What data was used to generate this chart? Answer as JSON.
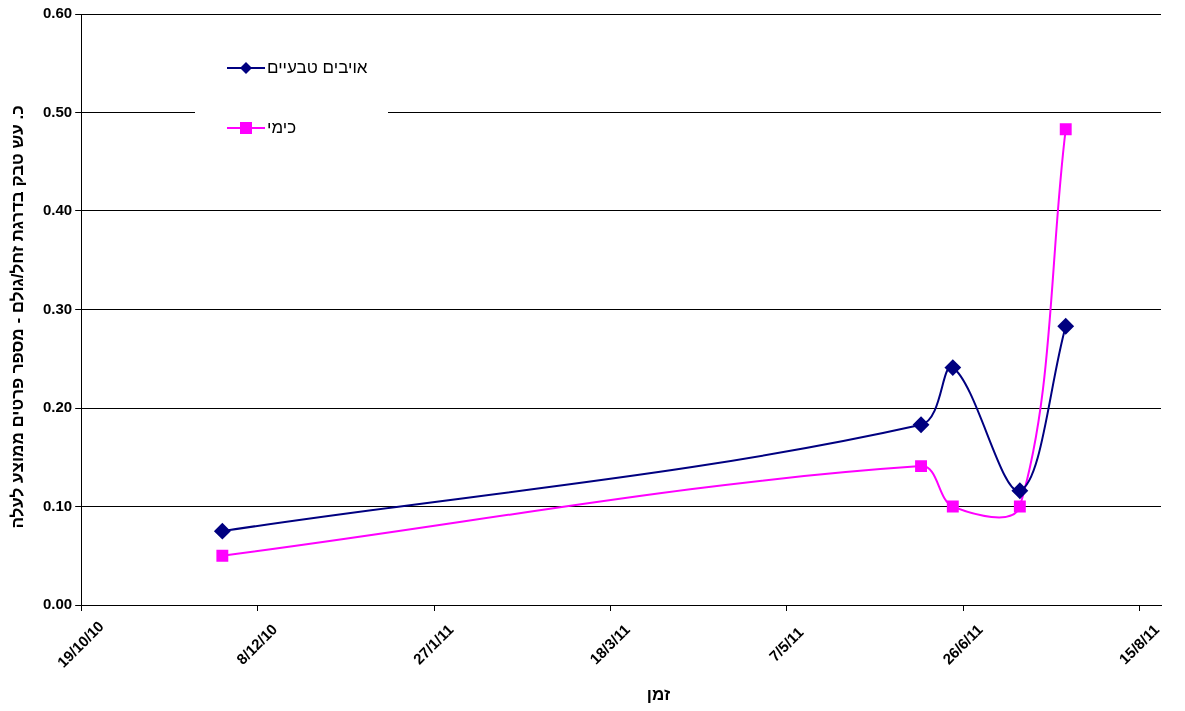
{
  "chart_data": {
    "type": "line",
    "xlabel": "זמן",
    "ylabel": "כ. עש טבק בדרגת זחל/גולם - מספר פרטים ממוצע לעלה",
    "x": [
      "2010-11-28",
      "2011-06-14",
      "2011-06-23",
      "2011-07-12",
      "2011-07-25"
    ],
    "series": [
      {
        "name": "אויבים טבעיים",
        "color": "#000080",
        "marker": "diamond",
        "values": [
          0.075,
          0.183,
          0.241,
          0.116,
          0.283
        ]
      },
      {
        "name": "כימי",
        "color": "#ff00ff",
        "marker": "square",
        "values": [
          0.05,
          0.141,
          0.1,
          0.1,
          0.483
        ]
      }
    ],
    "xlim": [
      "2010-10-19",
      "2011-08-21"
    ],
    "xticks": [
      {
        "value": "2010-10-19",
        "label": "19/10/10"
      },
      {
        "value": "2010-12-08",
        "label": "8/12/10"
      },
      {
        "value": "2011-01-27",
        "label": "27/1/11"
      },
      {
        "value": "2011-03-18",
        "label": "18/3/11"
      },
      {
        "value": "2011-05-07",
        "label": "7/5/11"
      },
      {
        "value": "2011-06-26",
        "label": "26/6/11"
      },
      {
        "value": "2011-08-15",
        "label": "15/8/11"
      }
    ],
    "ylim": [
      0,
      0.6
    ],
    "yticks": [
      {
        "value": 0,
        "label": "0.00"
      },
      {
        "value": 0.1,
        "label": "0.10"
      },
      {
        "value": 0.2,
        "label": "0.20"
      },
      {
        "value": 0.3,
        "label": "0.30"
      },
      {
        "value": 0.4,
        "label": "0.40"
      },
      {
        "value": 0.5,
        "label": "0.50"
      },
      {
        "value": 0.6,
        "label": "0.60"
      }
    ],
    "grid": "y",
    "legend": "top left",
    "line_style": "solid"
  }
}
